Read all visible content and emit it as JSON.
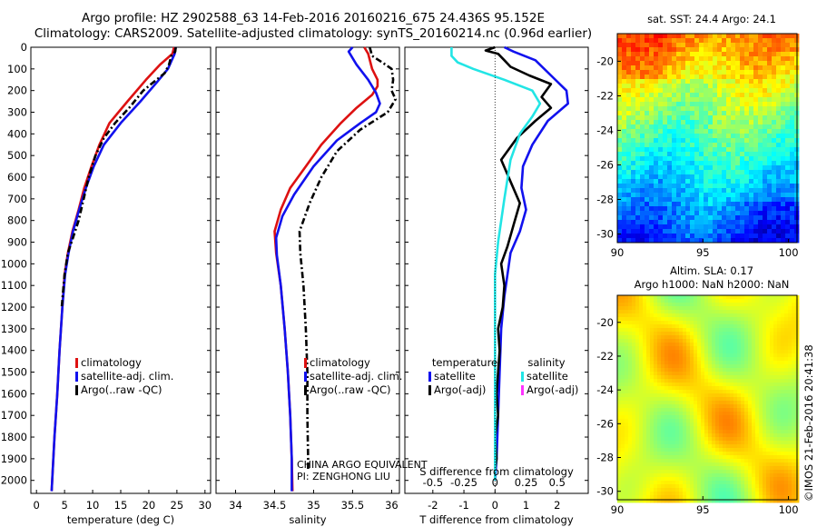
{
  "header": {
    "title_line1": "Argo profile: HZ 2902588_63 14-Feb-2016 20160216_675 24.436S 95.152E",
    "title_line2": "Climatology: CARS2009. Satellite-adjusted climatology: synTS_20160214.nc (0.96d earlier)"
  },
  "watermark": {
    "line1": "CHINA ARGO EQUIVALENT",
    "line2": "PI: ZENGHONG LIU"
  },
  "credit": "©IMOS 21-Feb-2016 20:41:38",
  "colors": {
    "climatology": "#dd1111",
    "satellite": "#1111ee",
    "argo": "#000000",
    "satellite_salinity": "#22e5e5",
    "argo_salinity_adj": "#ff33ff"
  },
  "chart_data": [
    {
      "id": "temperature",
      "type": "line",
      "xlabel": "temperature (deg C)",
      "ylabel": "",
      "xlim": [
        -1,
        31
      ],
      "ylim": [
        2060,
        0
      ],
      "xticks": [
        0,
        5,
        10,
        15,
        20,
        25,
        30
      ],
      "yticks": [
        0,
        100,
        200,
        300,
        400,
        500,
        600,
        700,
        800,
        900,
        1000,
        1100,
        1200,
        1300,
        1400,
        1500,
        1600,
        1700,
        1800,
        1900,
        2000
      ],
      "legend": [
        "climatology",
        "satellite-adj. clim.",
        "Argo(..raw -QC)"
      ],
      "series": [
        {
          "name": "climatology",
          "color_key": "climatology",
          "style": "solid",
          "points": [
            [
              24.5,
              0
            ],
            [
              24.2,
              30
            ],
            [
              22.0,
              80
            ],
            [
              19.5,
              150
            ],
            [
              16.2,
              250
            ],
            [
              13.0,
              350
            ],
            [
              11.2,
              450
            ],
            [
              9.8,
              550
            ],
            [
              8.5,
              650
            ],
            [
              7.5,
              750
            ],
            [
              6.4,
              850
            ],
            [
              5.6,
              950
            ],
            [
              5.0,
              1050
            ],
            [
              4.6,
              1200
            ],
            [
              4.1,
              1400
            ],
            [
              3.7,
              1600
            ],
            [
              3.2,
              1800
            ],
            [
              2.8,
              2000
            ],
            [
              2.7,
              2050
            ]
          ]
        },
        {
          "name": "satellite-adj. clim.",
          "color_key": "satellite",
          "style": "solid",
          "points": [
            [
              24.8,
              0
            ],
            [
              24.6,
              30
            ],
            [
              23.4,
              100
            ],
            [
              21.5,
              160
            ],
            [
              18.5,
              250
            ],
            [
              15.0,
              350
            ],
            [
              12.0,
              450
            ],
            [
              10.2,
              550
            ],
            [
              8.8,
              650
            ],
            [
              7.6,
              750
            ],
            [
              6.5,
              850
            ],
            [
              5.7,
              950
            ],
            [
              5.1,
              1050
            ],
            [
              4.6,
              1200
            ],
            [
              4.1,
              1400
            ],
            [
              3.7,
              1600
            ],
            [
              3.2,
              1800
            ],
            [
              2.8,
              2000
            ],
            [
              2.7,
              2050
            ]
          ]
        },
        {
          "name": "Argo(..raw -QC)",
          "color_key": "argo",
          "style": "dashdot",
          "points": [
            [
              24.8,
              0
            ],
            [
              24.7,
              20
            ],
            [
              24.0,
              40
            ],
            [
              23.6,
              80
            ],
            [
              22.8,
              120
            ],
            [
              20.9,
              160
            ],
            [
              19.0,
              200
            ],
            [
              16.5,
              280
            ],
            [
              14.0,
              350
            ],
            [
              12.0,
              420
            ],
            [
              10.5,
              500
            ],
            [
              9.3,
              600
            ],
            [
              8.4,
              700
            ],
            [
              7.5,
              800
            ],
            [
              6.5,
              880
            ],
            [
              5.6,
              950
            ],
            [
              5.0,
              1050
            ],
            [
              4.5,
              1200
            ]
          ]
        }
      ]
    },
    {
      "id": "salinity",
      "type": "line",
      "xlabel": "salinity",
      "ylabel": "",
      "xlim": [
        33.75,
        36.1
      ],
      "ylim": [
        2060,
        0
      ],
      "xticks": [
        34,
        34.5,
        35,
        35.5,
        36
      ],
      "legend": [
        "climatology",
        "satellite-adj. clim.",
        "Argo(..raw -QC)"
      ],
      "series": [
        {
          "name": "climatology",
          "color_key": "climatology",
          "style": "solid",
          "points": [
            [
              35.65,
              0
            ],
            [
              35.7,
              30
            ],
            [
              35.75,
              100
            ],
            [
              35.82,
              150
            ],
            [
              35.82,
              180
            ],
            [
              35.75,
              220
            ],
            [
              35.55,
              280
            ],
            [
              35.35,
              350
            ],
            [
              35.1,
              450
            ],
            [
              34.9,
              550
            ],
            [
              34.7,
              650
            ],
            [
              34.58,
              750
            ],
            [
              34.5,
              850
            ],
            [
              34.52,
              950
            ],
            [
              34.58,
              1100
            ],
            [
              34.63,
              1300
            ],
            [
              34.67,
              1500
            ],
            [
              34.7,
              1700
            ],
            [
              34.72,
              1900
            ],
            [
              34.73,
              2050
            ]
          ]
        },
        {
          "name": "satellite-adj. clim.",
          "color_key": "satellite",
          "style": "solid",
          "points": [
            [
              35.5,
              0
            ],
            [
              35.45,
              20
            ],
            [
              35.55,
              80
            ],
            [
              35.7,
              150
            ],
            [
              35.8,
              210
            ],
            [
              35.85,
              260
            ],
            [
              35.8,
              300
            ],
            [
              35.6,
              350
            ],
            [
              35.3,
              430
            ],
            [
              35.0,
              550
            ],
            [
              34.75,
              680
            ],
            [
              34.6,
              780
            ],
            [
              34.52,
              880
            ],
            [
              34.53,
              960
            ],
            [
              34.58,
              1100
            ],
            [
              34.63,
              1300
            ],
            [
              34.67,
              1500
            ],
            [
              34.7,
              1700
            ],
            [
              34.72,
              1900
            ],
            [
              34.72,
              2050
            ]
          ]
        },
        {
          "name": "Argo(..raw -QC)",
          "color_key": "argo",
          "style": "dashdot",
          "points": [
            [
              35.72,
              0
            ],
            [
              35.75,
              40
            ],
            [
              35.88,
              70
            ],
            [
              36.0,
              100
            ],
            [
              36.02,
              150
            ],
            [
              36.0,
              200
            ],
            [
              36.05,
              240
            ],
            [
              35.95,
              300
            ],
            [
              35.6,
              380
            ],
            [
              35.3,
              480
            ],
            [
              35.1,
              600
            ],
            [
              34.95,
              720
            ],
            [
              34.82,
              850
            ],
            [
              34.83,
              950
            ],
            [
              34.87,
              1100
            ],
            [
              34.9,
              1300
            ],
            [
              34.92,
              1500
            ],
            [
              34.92,
              1700
            ],
            [
              34.93,
              1900
            ],
            [
              34.93,
              1950
            ]
          ]
        }
      ]
    },
    {
      "id": "difference",
      "type": "line",
      "xlabel": "T difference from climatology",
      "xlabel_top": "S difference from climatology",
      "xlim": [
        -2.9,
        3.0
      ],
      "ylim": [
        2060,
        0
      ],
      "xticks": [
        -2,
        -1,
        0,
        1,
        2
      ],
      "sticks_labels": [
        "-0.5",
        "-0.25",
        "0",
        "0.25",
        "0.5"
      ],
      "legend_headers": [
        "temperature",
        "salinity"
      ],
      "legend": [
        "satellite",
        "Argo(-adj)",
        "satellite",
        "Argo(-adj)"
      ],
      "series": [
        {
          "name": "temperature satellite",
          "color_key": "satellite",
          "style": "solid",
          "points": [
            [
              0.3,
              0
            ],
            [
              0.6,
              20
            ],
            [
              1.3,
              60
            ],
            [
              1.8,
              130
            ],
            [
              2.3,
              200
            ],
            [
              2.35,
              260
            ],
            [
              1.7,
              340
            ],
            [
              1.2,
              450
            ],
            [
              0.9,
              550
            ],
            [
              0.85,
              650
            ],
            [
              1.0,
              750
            ],
            [
              0.8,
              850
            ],
            [
              0.5,
              950
            ],
            [
              0.4,
              1050
            ],
            [
              0.3,
              1150
            ],
            [
              0.2,
              1300
            ],
            [
              0.15,
              1500
            ],
            [
              0.1,
              1700
            ],
            [
              0.05,
              1900
            ],
            [
              0.0,
              2000
            ]
          ]
        },
        {
          "name": "temperature Argo(-adj)",
          "color_key": "argo",
          "style": "solid",
          "points": [
            [
              0.0,
              0
            ],
            [
              -0.3,
              15
            ],
            [
              0.1,
              30
            ],
            [
              0.3,
              60
            ],
            [
              0.5,
              90
            ],
            [
              1.1,
              130
            ],
            [
              1.8,
              170
            ],
            [
              1.5,
              230
            ],
            [
              1.8,
              280
            ],
            [
              1.3,
              340
            ],
            [
              0.7,
              420
            ],
            [
              0.2,
              520
            ],
            [
              0.5,
              620
            ],
            [
              0.8,
              720
            ],
            [
              0.6,
              820
            ],
            [
              0.4,
              920
            ],
            [
              0.2,
              1000
            ],
            [
              0.3,
              1100
            ],
            [
              0.25,
              1200
            ],
            [
              0.1,
              1300
            ],
            [
              0.15,
              1400
            ],
            [
              0.1,
              1500
            ],
            [
              0.05,
              1600
            ],
            [
              0.1,
              1700
            ],
            [
              0.0,
              1800
            ],
            [
              0.05,
              1900
            ],
            [
              0.0,
              1950
            ]
          ]
        },
        {
          "name": "salinity satellite",
          "color_key": "satellite_salinity",
          "style": "solid",
          "points": [
            [
              -1.4,
              0
            ],
            [
              -1.4,
              40
            ],
            [
              -1.2,
              70
            ],
            [
              -0.7,
              100
            ],
            [
              0.3,
              150
            ],
            [
              1.2,
              200
            ],
            [
              1.45,
              260
            ],
            [
              1.2,
              320
            ],
            [
              0.8,
              400
            ],
            [
              0.5,
              520
            ],
            [
              0.3,
              700
            ],
            [
              0.1,
              900
            ],
            [
              0.0,
              1050
            ],
            [
              0.0,
              1200
            ],
            [
              0.0,
              1400
            ],
            [
              0.0,
              1600
            ],
            [
              0.0,
              1800
            ],
            [
              0.0,
              2000
            ]
          ]
        }
      ]
    },
    {
      "id": "sst-map",
      "type": "heatmap",
      "title": "sat. SST: 24.4 Argo: 24.1",
      "xlim": [
        90,
        100.5
      ],
      "ylim": [
        -30.5,
        -18.4
      ],
      "xticks": [
        90,
        95,
        100
      ],
      "yticks": [
        -20,
        -22,
        -24,
        -26,
        -28,
        -30
      ]
    },
    {
      "id": "sla-map",
      "type": "heatmap",
      "title_line1": "Altim. SLA: 0.17",
      "title_line2": "Argo h1000: NaN h2000: NaN",
      "xlim": [
        90,
        100.5
      ],
      "ylim": [
        -30.5,
        -18.4
      ],
      "xticks": [
        90,
        95,
        100
      ],
      "yticks": [
        -20,
        -22,
        -24,
        -26,
        -28,
        -30
      ]
    }
  ]
}
